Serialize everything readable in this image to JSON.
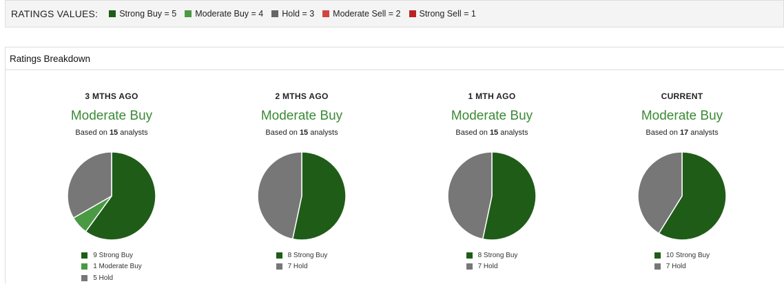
{
  "legend": {
    "title": "RATINGS VALUES:",
    "items": [
      {
        "label": "Strong Buy = 5",
        "color": "#1f5c18"
      },
      {
        "label": "Moderate Buy = 4",
        "color": "#4a9a44"
      },
      {
        "label": "Hold = 3",
        "color": "#666666"
      },
      {
        "label": "Moderate Sell = 2",
        "color": "#d24545"
      },
      {
        "label": "Strong Sell = 1",
        "color": "#bb2222"
      }
    ]
  },
  "panel": {
    "title": "Ratings Breakdown"
  },
  "chart_data": [
    {
      "type": "pie",
      "title": "3 MTHS AGO",
      "consensus": "Moderate Buy",
      "analysts_prefix": "Based on ",
      "analysts_count": "15",
      "analysts_suffix": " analysts",
      "slices": [
        {
          "label": "Strong Buy",
          "value": 9,
          "color": "#1f5c18"
        },
        {
          "label": "Moderate Buy",
          "value": 1,
          "color": "#4a9a44"
        },
        {
          "label": "Hold",
          "value": 5,
          "color": "#777777"
        }
      ]
    },
    {
      "type": "pie",
      "title": "2 MTHS AGO",
      "consensus": "Moderate Buy",
      "analysts_prefix": "Based on ",
      "analysts_count": "15",
      "analysts_suffix": " analysts",
      "slices": [
        {
          "label": "Strong Buy",
          "value": 8,
          "color": "#1f5c18"
        },
        {
          "label": "Hold",
          "value": 7,
          "color": "#777777"
        }
      ]
    },
    {
      "type": "pie",
      "title": "1 MTH AGO",
      "consensus": "Moderate Buy",
      "analysts_prefix": "Based on ",
      "analysts_count": "15",
      "analysts_suffix": " analysts",
      "slices": [
        {
          "label": "Strong Buy",
          "value": 8,
          "color": "#1f5c18"
        },
        {
          "label": "Hold",
          "value": 7,
          "color": "#777777"
        }
      ]
    },
    {
      "type": "pie",
      "title": "CURRENT",
      "consensus": "Moderate Buy",
      "analysts_prefix": "Based on ",
      "analysts_count": "17",
      "analysts_suffix": " analysts",
      "slices": [
        {
          "label": "Strong Buy",
          "value": 10,
          "color": "#1f5c18"
        },
        {
          "label": "Hold",
          "value": 7,
          "color": "#777777"
        }
      ]
    }
  ]
}
